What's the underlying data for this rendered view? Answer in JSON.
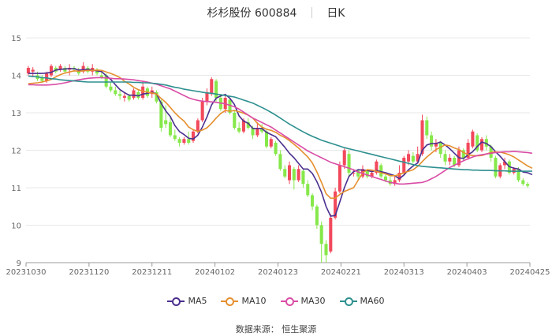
{
  "title": {
    "name": "杉杉股份",
    "code": "600884",
    "period": "日K"
  },
  "source": "数据来源：  恒生聚源",
  "colors": {
    "up": "#f2495c",
    "down": "#86e84a",
    "grid": "#e8e8e8",
    "MA5": "#4a2f8f",
    "MA10": "#e58f2e",
    "MA30": "#d94ca6",
    "MA60": "#2e8f8f"
  },
  "chart_data": {
    "type": "candlestick",
    "ylim": [
      9,
      15
    ],
    "yticks": [
      "15",
      "14",
      "13",
      "12",
      "11",
      "10",
      "9"
    ],
    "xticks": [
      "20231030",
      "20231120",
      "20231211",
      "20240102",
      "20240123",
      "20240221",
      "20240313",
      "20240403",
      "20240425"
    ],
    "legend": [
      "MA5",
      "MA10",
      "MA30",
      "MA60"
    ],
    "legend_position": "bottom",
    "candles": [
      [
        14.05,
        14.2,
        14.0,
        14.25
      ],
      [
        14.1,
        14.15,
        13.95,
        14.22
      ],
      [
        14.0,
        13.9,
        13.85,
        14.1
      ],
      [
        13.95,
        13.85,
        13.8,
        14.0
      ],
      [
        13.85,
        14.05,
        13.8,
        14.1
      ],
      [
        14.0,
        14.25,
        13.95,
        14.3
      ],
      [
        14.2,
        14.1,
        14.05,
        14.25
      ],
      [
        14.15,
        14.25,
        14.1,
        14.3
      ],
      [
        14.2,
        14.1,
        14.05,
        14.25
      ],
      [
        14.15,
        14.2,
        14.0,
        14.3
      ],
      [
        14.2,
        14.15,
        14.1,
        14.25
      ],
      [
        14.15,
        14.05,
        14.0,
        14.2
      ],
      [
        14.1,
        14.25,
        14.05,
        14.35
      ],
      [
        14.2,
        14.1,
        14.05,
        14.25
      ],
      [
        14.1,
        14.2,
        14.0,
        14.3
      ],
      [
        14.15,
        14.05,
        14.0,
        14.2
      ],
      [
        14.0,
        13.95,
        13.9,
        14.1
      ],
      [
        14.0,
        13.7,
        13.65,
        14.05
      ],
      [
        13.7,
        13.6,
        13.55,
        13.8
      ],
      [
        13.6,
        13.5,
        13.45,
        13.7
      ],
      [
        13.5,
        13.45,
        13.35,
        13.6
      ],
      [
        13.4,
        13.45,
        13.3,
        13.55
      ],
      [
        13.45,
        13.35,
        13.3,
        13.5
      ],
      [
        13.4,
        13.6,
        13.35,
        13.65
      ],
      [
        13.55,
        13.4,
        13.35,
        13.6
      ],
      [
        13.4,
        13.7,
        13.35,
        13.85
      ],
      [
        13.65,
        13.45,
        13.4,
        13.7
      ],
      [
        13.5,
        13.6,
        13.4,
        13.7
      ],
      [
        13.55,
        13.3,
        13.25,
        13.6
      ],
      [
        13.3,
        12.6,
        12.5,
        13.35
      ],
      [
        12.8,
        12.7,
        12.6,
        13.2
      ],
      [
        12.75,
        12.4,
        12.35,
        12.9
      ],
      [
        12.4,
        12.3,
        12.25,
        12.55
      ],
      [
        12.3,
        12.2,
        12.1,
        12.35
      ],
      [
        12.2,
        12.3,
        12.15,
        12.35
      ],
      [
        12.3,
        12.2,
        12.15,
        12.5
      ],
      [
        12.25,
        12.5,
        12.2,
        12.55
      ],
      [
        12.5,
        12.8,
        12.45,
        12.85
      ],
      [
        12.8,
        13.3,
        12.75,
        13.4
      ],
      [
        13.3,
        13.55,
        13.2,
        13.65
      ],
      [
        13.5,
        13.9,
        13.45,
        13.95
      ],
      [
        13.85,
        13.4,
        13.3,
        13.9
      ],
      [
        13.4,
        13.1,
        13.05,
        13.5
      ],
      [
        13.1,
        13.4,
        13.0,
        13.45
      ],
      [
        13.35,
        13.0,
        12.95,
        13.4
      ],
      [
        13.0,
        12.6,
        12.55,
        13.05
      ],
      [
        12.6,
        12.5,
        12.45,
        12.75
      ],
      [
        12.5,
        12.8,
        12.45,
        12.85
      ],
      [
        12.75,
        12.6,
        12.55,
        12.85
      ],
      [
        12.6,
        12.4,
        12.3,
        12.65
      ],
      [
        12.4,
        12.6,
        12.35,
        12.75
      ],
      [
        12.6,
        12.5,
        12.45,
        12.7
      ],
      [
        12.5,
        12.1,
        12.05,
        12.55
      ],
      [
        12.1,
        12.3,
        12.05,
        12.35
      ],
      [
        12.2,
        11.9,
        11.85,
        12.25
      ],
      [
        11.9,
        11.5,
        11.45,
        12.0
      ],
      [
        11.5,
        11.3,
        11.25,
        11.6
      ],
      [
        11.2,
        11.6,
        11.1,
        11.7
      ],
      [
        11.5,
        11.2,
        10.95,
        11.55
      ],
      [
        11.2,
        11.5,
        11.15,
        11.6
      ],
      [
        11.45,
        11.1,
        11.0,
        11.5
      ],
      [
        11.1,
        10.8,
        10.75,
        11.2
      ],
      [
        10.8,
        10.5,
        10.4,
        10.85
      ],
      [
        10.5,
        10.0,
        9.9,
        10.55
      ],
      [
        10.0,
        9.5,
        9.0,
        10.1
      ],
      [
        9.5,
        9.2,
        9.0,
        9.6
      ],
      [
        9.3,
        10.2,
        9.25,
        10.3
      ],
      [
        10.2,
        10.9,
        10.15,
        11.0
      ],
      [
        10.9,
        11.6,
        10.85,
        11.7
      ],
      [
        11.6,
        12.0,
        11.5,
        12.05
      ],
      [
        11.9,
        11.4,
        11.3,
        12.0
      ],
      [
        11.4,
        11.4,
        11.3,
        11.5
      ],
      [
        11.45,
        11.3,
        11.2,
        11.5
      ],
      [
        11.3,
        11.5,
        11.25,
        11.6
      ],
      [
        11.45,
        11.3,
        11.25,
        11.5
      ],
      [
        11.3,
        11.4,
        11.25,
        11.45
      ],
      [
        11.4,
        11.7,
        11.35,
        11.75
      ],
      [
        11.6,
        11.3,
        11.25,
        11.65
      ],
      [
        11.3,
        11.2,
        11.15,
        11.35
      ],
      [
        11.2,
        11.1,
        11.05,
        11.3
      ],
      [
        11.1,
        11.2,
        11.05,
        11.3
      ],
      [
        11.2,
        11.4,
        11.15,
        11.6
      ],
      [
        11.4,
        11.8,
        11.35,
        11.85
      ],
      [
        11.7,
        11.9,
        11.6,
        12.0
      ],
      [
        11.85,
        11.7,
        11.65,
        11.95
      ],
      [
        11.7,
        11.9,
        11.65,
        12.1
      ],
      [
        11.9,
        12.8,
        11.85,
        12.95
      ],
      [
        12.8,
        12.4,
        12.3,
        12.9
      ],
      [
        12.4,
        12.1,
        12.0,
        12.5
      ],
      [
        12.1,
        12.2,
        11.95,
        12.3
      ],
      [
        12.2,
        11.9,
        11.8,
        12.25
      ],
      [
        11.9,
        11.7,
        11.6,
        12.0
      ],
      [
        11.7,
        11.8,
        11.6,
        11.9
      ],
      [
        11.8,
        11.6,
        11.55,
        11.85
      ],
      [
        11.6,
        12.0,
        11.55,
        12.1
      ],
      [
        12.0,
        11.8,
        11.7,
        12.05
      ],
      [
        11.8,
        12.2,
        11.75,
        12.3
      ],
      [
        12.1,
        12.5,
        12.05,
        12.55
      ],
      [
        12.4,
        12.0,
        11.95,
        12.45
      ],
      [
        12.0,
        12.3,
        11.95,
        12.35
      ],
      [
        12.3,
        12.1,
        12.0,
        12.4
      ],
      [
        12.1,
        11.8,
        11.7,
        12.15
      ],
      [
        11.8,
        11.3,
        11.25,
        11.85
      ],
      [
        11.3,
        11.6,
        11.25,
        11.65
      ],
      [
        11.6,
        11.7,
        11.5,
        11.8
      ],
      [
        11.7,
        11.4,
        11.35,
        11.75
      ],
      [
        11.4,
        11.5,
        11.35,
        11.55
      ],
      [
        11.5,
        11.2,
        11.15,
        11.55
      ],
      [
        11.2,
        11.1,
        11.05,
        11.25
      ],
      [
        11.1,
        11.05,
        11.0,
        11.15
      ]
    ],
    "series": [
      {
        "name": "MA5",
        "values": [
          14.05,
          14.05,
          14.05,
          14.05,
          14.06,
          14.08,
          14.14,
          14.16,
          14.17,
          14.18,
          14.18,
          14.14,
          14.15,
          14.16,
          14.14,
          14.12,
          14.1,
          13.99,
          13.89,
          13.75,
          13.62,
          13.54,
          13.47,
          13.47,
          13.45,
          13.5,
          13.52,
          13.55,
          13.5,
          13.25,
          13.05,
          12.9,
          12.66,
          12.5,
          12.42,
          12.32,
          12.3,
          12.4,
          12.62,
          12.89,
          13.21,
          13.39,
          13.45,
          13.49,
          13.39,
          13.22,
          12.92,
          12.78,
          12.72,
          12.58,
          12.58,
          12.58,
          12.48,
          12.42,
          12.36,
          12.22,
          12.08,
          11.92,
          11.8,
          11.65,
          11.5,
          11.5,
          11.38,
          11.16,
          10.88,
          10.5,
          10.24,
          10.26,
          10.62,
          11.0,
          11.3,
          11.43,
          11.48,
          11.47,
          11.46,
          11.43,
          11.46,
          11.43,
          11.4,
          11.36,
          11.32,
          11.24,
          11.34,
          11.48,
          11.58,
          11.66,
          12.0,
          12.14,
          12.18,
          12.18,
          12.22,
          12.14,
          12.04,
          11.92,
          11.8,
          11.78,
          11.88,
          11.96,
          12.1,
          12.22,
          12.18,
          12.1,
          11.96,
          11.84,
          11.7,
          11.56,
          11.52,
          11.5,
          11.42,
          11.4,
          11.35
        ]
      },
      {
        "name": "MA10",
        "values": [
          13.78,
          13.79,
          13.8,
          13.82,
          13.85,
          13.89,
          13.96,
          14.02,
          14.06,
          14.09,
          14.12,
          14.11,
          14.12,
          14.13,
          14.13,
          14.14,
          14.13,
          14.09,
          14.05,
          14.0,
          13.94,
          13.84,
          13.77,
          13.68,
          13.62,
          13.58,
          13.55,
          13.53,
          13.5,
          13.38,
          13.28,
          13.14,
          13.0,
          12.88,
          12.78,
          12.62,
          12.55,
          12.5,
          12.54,
          12.6,
          12.72,
          12.86,
          12.98,
          13.06,
          13.04,
          13.06,
          13.03,
          12.99,
          12.94,
          12.86,
          12.72,
          12.62,
          12.56,
          12.53,
          12.48,
          12.4,
          12.34,
          12.26,
          12.16,
          12.06,
          11.94,
          11.82,
          11.66,
          11.42,
          11.14,
          10.84,
          10.72,
          10.72,
          10.82,
          10.9,
          10.95,
          11.0,
          11.2,
          11.4,
          11.48,
          11.47,
          11.44,
          11.4,
          11.37,
          11.32,
          11.32,
          11.35,
          11.4,
          11.44,
          11.48,
          11.57,
          11.7,
          11.82,
          11.92,
          12.02,
          12.08,
          12.14,
          12.12,
          12.06,
          12.02,
          11.94,
          11.88,
          11.86,
          11.85,
          11.86,
          11.9,
          11.94,
          11.96,
          11.95,
          11.92,
          11.88,
          11.82,
          11.74,
          11.66,
          11.58,
          11.52
        ]
      },
      {
        "name": "MA30",
        "values": [
          13.75,
          13.75,
          13.74,
          13.74,
          13.74,
          13.75,
          13.76,
          13.78,
          13.8,
          13.83,
          13.86,
          13.88,
          13.9,
          13.92,
          13.93,
          13.94,
          13.94,
          13.93,
          13.92,
          13.91,
          13.91,
          13.9,
          13.89,
          13.88,
          13.86,
          13.84,
          13.82,
          13.79,
          13.76,
          13.72,
          13.68,
          13.64,
          13.58,
          13.52,
          13.46,
          13.4,
          13.36,
          13.33,
          13.31,
          13.3,
          13.29,
          13.28,
          13.26,
          13.24,
          13.2,
          13.16,
          13.1,
          13.02,
          12.94,
          12.86,
          12.8,
          12.74,
          12.68,
          12.62,
          12.54,
          12.46,
          12.38,
          12.3,
          12.22,
          12.14,
          12.06,
          11.98,
          11.92,
          11.86,
          11.8,
          11.74,
          11.68,
          11.64,
          11.6,
          11.56,
          11.52,
          11.48,
          11.42,
          11.38,
          11.34,
          11.3,
          11.26,
          11.22,
          11.18,
          11.14,
          11.12,
          11.1,
          11.1,
          11.11,
          11.12,
          11.13,
          11.14,
          11.18,
          11.24,
          11.3,
          11.38,
          11.46,
          11.54,
          11.6,
          11.66,
          11.72,
          11.77,
          11.82,
          11.86,
          11.88,
          11.9,
          11.92,
          11.94,
          11.95,
          11.96,
          11.96,
          11.97,
          11.96,
          11.95,
          11.94,
          11.92
        ]
      },
      {
        "name": "MA60",
        "values": [
          13.98,
          13.97,
          13.96,
          13.94,
          13.93,
          13.91,
          13.9,
          13.88,
          13.87,
          13.86,
          13.85,
          13.84,
          13.83,
          13.82,
          13.82,
          13.82,
          13.82,
          13.82,
          13.82,
          13.82,
          13.82,
          13.82,
          13.82,
          13.81,
          13.81,
          13.8,
          13.8,
          13.79,
          13.78,
          13.76,
          13.74,
          13.71,
          13.68,
          13.66,
          13.63,
          13.61,
          13.59,
          13.57,
          13.55,
          13.53,
          13.52,
          13.5,
          13.48,
          13.46,
          13.44,
          13.42,
          13.38,
          13.34,
          13.3,
          13.26,
          13.2,
          13.14,
          13.08,
          13.01,
          12.94,
          12.86,
          12.78,
          12.7,
          12.63,
          12.56,
          12.49,
          12.43,
          12.37,
          12.32,
          12.27,
          12.23,
          12.19,
          12.15,
          12.11,
          12.07,
          12.04,
          12.01,
          11.98,
          11.95,
          11.92,
          11.89,
          11.86,
          11.83,
          11.8,
          11.77,
          11.74,
          11.71,
          11.68,
          11.65,
          11.62,
          11.59,
          11.57,
          11.56,
          11.55,
          11.54,
          11.53,
          11.52,
          11.51,
          11.5,
          11.49,
          11.48,
          11.48,
          11.47,
          11.47,
          11.46,
          11.46,
          11.46,
          11.45,
          11.45,
          11.45,
          11.44,
          11.44,
          11.44,
          11.44,
          11.44,
          11.44
        ]
      }
    ]
  }
}
